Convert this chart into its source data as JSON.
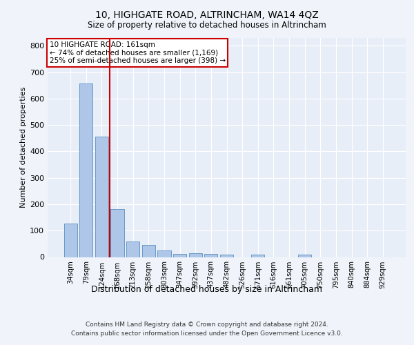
{
  "title_line1": "10, HIGHGATE ROAD, ALTRINCHAM, WA14 4QZ",
  "title_line2": "Size of property relative to detached houses in Altrincham",
  "xlabel": "Distribution of detached houses by size in Altrincham",
  "ylabel": "Number of detached properties",
  "categories": [
    "34sqm",
    "79sqm",
    "124sqm",
    "168sqm",
    "213sqm",
    "258sqm",
    "303sqm",
    "347sqm",
    "392sqm",
    "437sqm",
    "482sqm",
    "526sqm",
    "571sqm",
    "616sqm",
    "661sqm",
    "705sqm",
    "750sqm",
    "795sqm",
    "840sqm",
    "884sqm",
    "929sqm"
  ],
  "values": [
    127,
    657,
    456,
    182,
    60,
    45,
    25,
    12,
    14,
    12,
    9,
    0,
    8,
    0,
    0,
    8,
    0,
    0,
    0,
    0,
    0
  ],
  "bar_color": "#aec6e8",
  "bar_edge_color": "#5a8fc0",
  "vline_x": 2.5,
  "vline_color": "#cc0000",
  "annotation_text": "10 HIGHGATE ROAD: 161sqm\n← 74% of detached houses are smaller (1,169)\n25% of semi-detached houses are larger (398) →",
  "annotation_box_color": "#ffffff",
  "annotation_box_edge": "#cc0000",
  "ylim": [
    0,
    830
  ],
  "yticks": [
    0,
    100,
    200,
    300,
    400,
    500,
    600,
    700,
    800
  ],
  "footer_line1": "Contains HM Land Registry data © Crown copyright and database right 2024.",
  "footer_line2": "Contains public sector information licensed under the Open Government Licence v3.0.",
  "bg_color": "#f0f4fa",
  "plot_bg_color": "#e8eef8"
}
